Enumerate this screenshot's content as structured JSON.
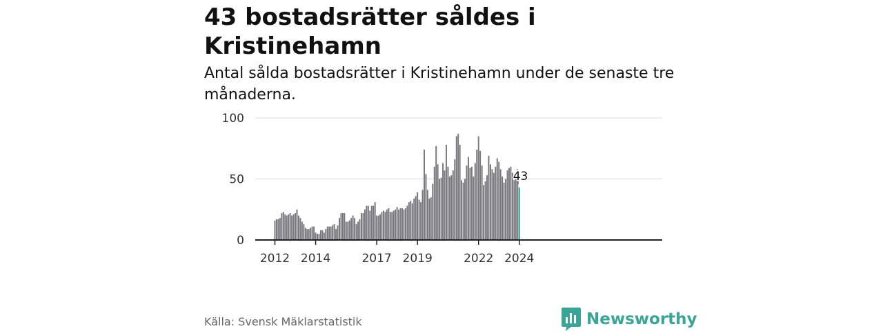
{
  "title": "43 bostadsrätter såldes i Kristinehamn",
  "subtitle": "Antal sålda bostadsrätter i Kristinehamn under de senaste tre månaderna.",
  "source": "Källa: Svensk Mäklarstatistik",
  "brand": "Newsworthy",
  "colors": {
    "bar": "#76767c",
    "highlight": "#2a9d8f",
    "brand": "#3aa497",
    "grid": "#d9d9d9",
    "axis": "#222222"
  },
  "chart_data": {
    "type": "bar",
    "title": "43 bostadsrätter såldes i Kristinehamn",
    "xlabel": "",
    "ylabel": "",
    "ylim": [
      0,
      100
    ],
    "yticks": [
      0,
      50,
      100
    ],
    "grid": true,
    "x_start": "2012-01",
    "x_end": "2024-01",
    "xtick_labels": [
      "2012",
      "2014",
      "2017",
      "2019",
      "2022",
      "2024"
    ],
    "xtick_index": [
      0,
      24,
      60,
      84,
      120,
      144
    ],
    "last_value_label": "43",
    "values": [
      16,
      17,
      17,
      18,
      22,
      23,
      21,
      20,
      21,
      22,
      20,
      21,
      22,
      25,
      20,
      18,
      15,
      13,
      10,
      9,
      9,
      10,
      11,
      11,
      6,
      5,
      5,
      8,
      8,
      6,
      9,
      11,
      11,
      11,
      12,
      13,
      9,
      12,
      18,
      22,
      22,
      22,
      15,
      15,
      16,
      18,
      20,
      18,
      13,
      15,
      17,
      22,
      22,
      25,
      28,
      28,
      24,
      28,
      28,
      31,
      20,
      20,
      21,
      23,
      24,
      23,
      25,
      26,
      23,
      23,
      24,
      25,
      27,
      25,
      26,
      26,
      25,
      26,
      28,
      31,
      32,
      30,
      34,
      36,
      39,
      33,
      31,
      41,
      74,
      54,
      41,
      34,
      35,
      46,
      60,
      77,
      62,
      50,
      51,
      63,
      57,
      78,
      60,
      52,
      53,
      57,
      66,
      85,
      87,
      78,
      49,
      47,
      50,
      61,
      68,
      59,
      60,
      52,
      63,
      74,
      85,
      73,
      61,
      45,
      48,
      53,
      69,
      62,
      58,
      55,
      60,
      67,
      64,
      58,
      52,
      47,
      50,
      57,
      59,
      60,
      55,
      49,
      50,
      50,
      43
    ]
  }
}
